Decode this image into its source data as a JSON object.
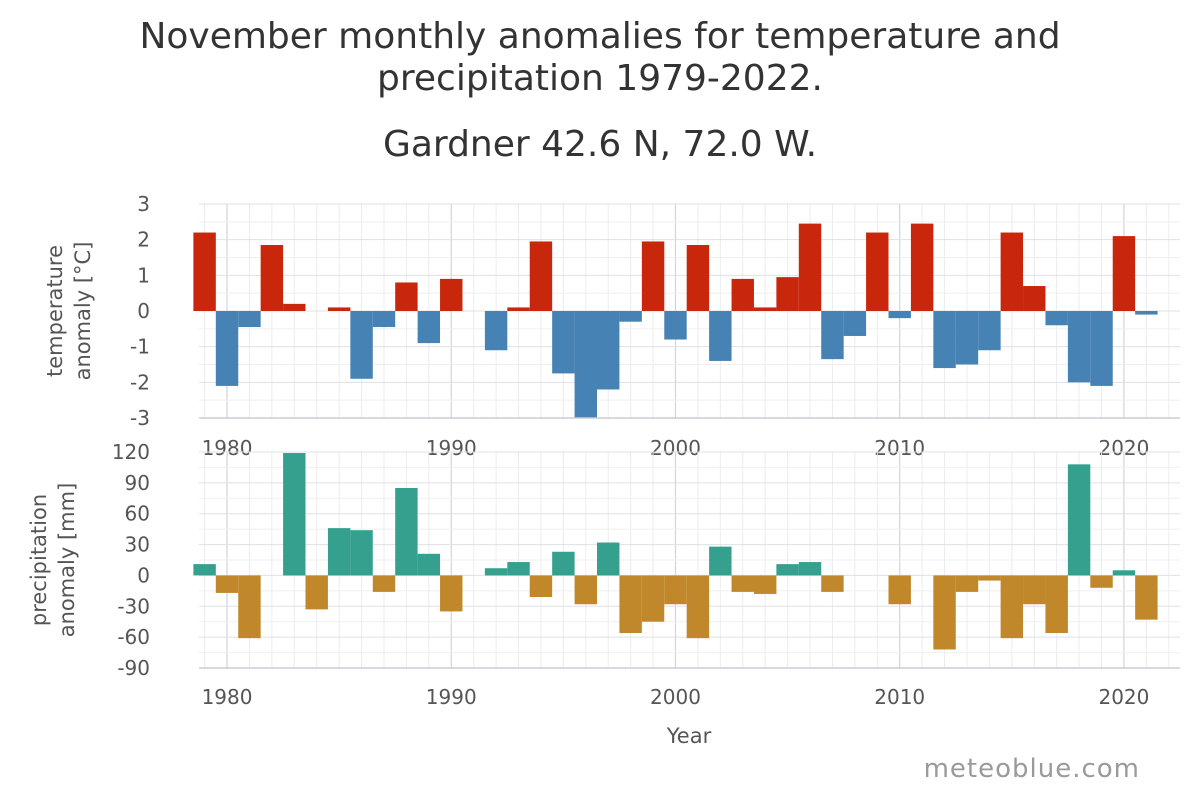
{
  "header": {
    "title_line1": "November monthly anomalies for temperature and",
    "title_line2": "precipitation 1979-2022.",
    "subtitle": "Gardner 42.6 N, 72.0 W."
  },
  "watermark": "meteoblue.com",
  "chart_data": [
    {
      "type": "bar",
      "ylabel_lines": [
        "temperature",
        "anomaly [°C]"
      ],
      "xlabel": "",
      "ylim": [
        -3,
        3
      ],
      "yticks": [
        3,
        2,
        1,
        0,
        -1,
        -2,
        -3
      ],
      "xlim": [
        1978.75,
        2022.5
      ],
      "xticks": [
        1980,
        1990,
        2000,
        2010,
        2020
      ],
      "grid": true,
      "positive_color": "#c8270b",
      "negative_color": "#4682b4",
      "x": [
        1979,
        1980,
        1981,
        1982,
        1983,
        1984,
        1985,
        1986,
        1987,
        1988,
        1989,
        1990,
        1991,
        1992,
        1993,
        1994,
        1995,
        1996,
        1997,
        1998,
        1999,
        2000,
        2001,
        2002,
        2003,
        2004,
        2005,
        2006,
        2007,
        2008,
        2009,
        2010,
        2011,
        2012,
        2013,
        2014,
        2015,
        2016,
        2017,
        2018,
        2019,
        2020,
        2021
      ],
      "values": [
        2.2,
        -2.1,
        -0.45,
        1.85,
        0.2,
        0,
        0.1,
        -1.9,
        -0.45,
        0.8,
        -0.9,
        0.9,
        0,
        -1.1,
        0.1,
        1.95,
        -1.75,
        -3.0,
        -2.2,
        -0.3,
        1.95,
        -0.8,
        1.85,
        -1.4,
        0.9,
        0.1,
        0.95,
        2.45,
        -1.35,
        -0.7,
        2.2,
        -0.2,
        2.45,
        -1.6,
        -1.5,
        -1.1,
        2.2,
        0.7,
        -0.4,
        -2.0,
        -2.1,
        2.1,
        -0.1
      ]
    },
    {
      "type": "bar",
      "ylabel_lines": [
        "precipitation",
        "anomaly [mm]"
      ],
      "xlabel": "Year",
      "ylim": [
        -90,
        120
      ],
      "yticks": [
        120,
        90,
        60,
        30,
        0,
        -30,
        -60,
        -90
      ],
      "xlim": [
        1978.75,
        2022.5
      ],
      "xticks": [
        1980,
        1990,
        2000,
        2010,
        2020
      ],
      "grid": true,
      "positive_color": "#36a08e",
      "negative_color": "#c0882a",
      "x": [
        1979,
        1980,
        1981,
        1982,
        1983,
        1984,
        1985,
        1986,
        1987,
        1988,
        1989,
        1990,
        1991,
        1992,
        1993,
        1994,
        1995,
        1996,
        1997,
        1998,
        1999,
        2000,
        2001,
        2002,
        2003,
        2004,
        2005,
        2006,
        2007,
        2008,
        2009,
        2010,
        2011,
        2012,
        2013,
        2014,
        2015,
        2016,
        2017,
        2018,
        2019,
        2020,
        2021
      ],
      "values": [
        11,
        -17,
        -61,
        0,
        119,
        -33,
        46,
        44,
        -16,
        85,
        21,
        -35,
        0,
        7,
        13,
        -21,
        23,
        -28,
        32,
        -56,
        -45,
        -28,
        -61,
        28,
        -16,
        -18,
        11,
        13,
        -16,
        0,
        0,
        -28,
        0,
        -72,
        -16,
        -5,
        -61,
        -28,
        -56,
        108,
        -12,
        5,
        -43
      ]
    }
  ]
}
